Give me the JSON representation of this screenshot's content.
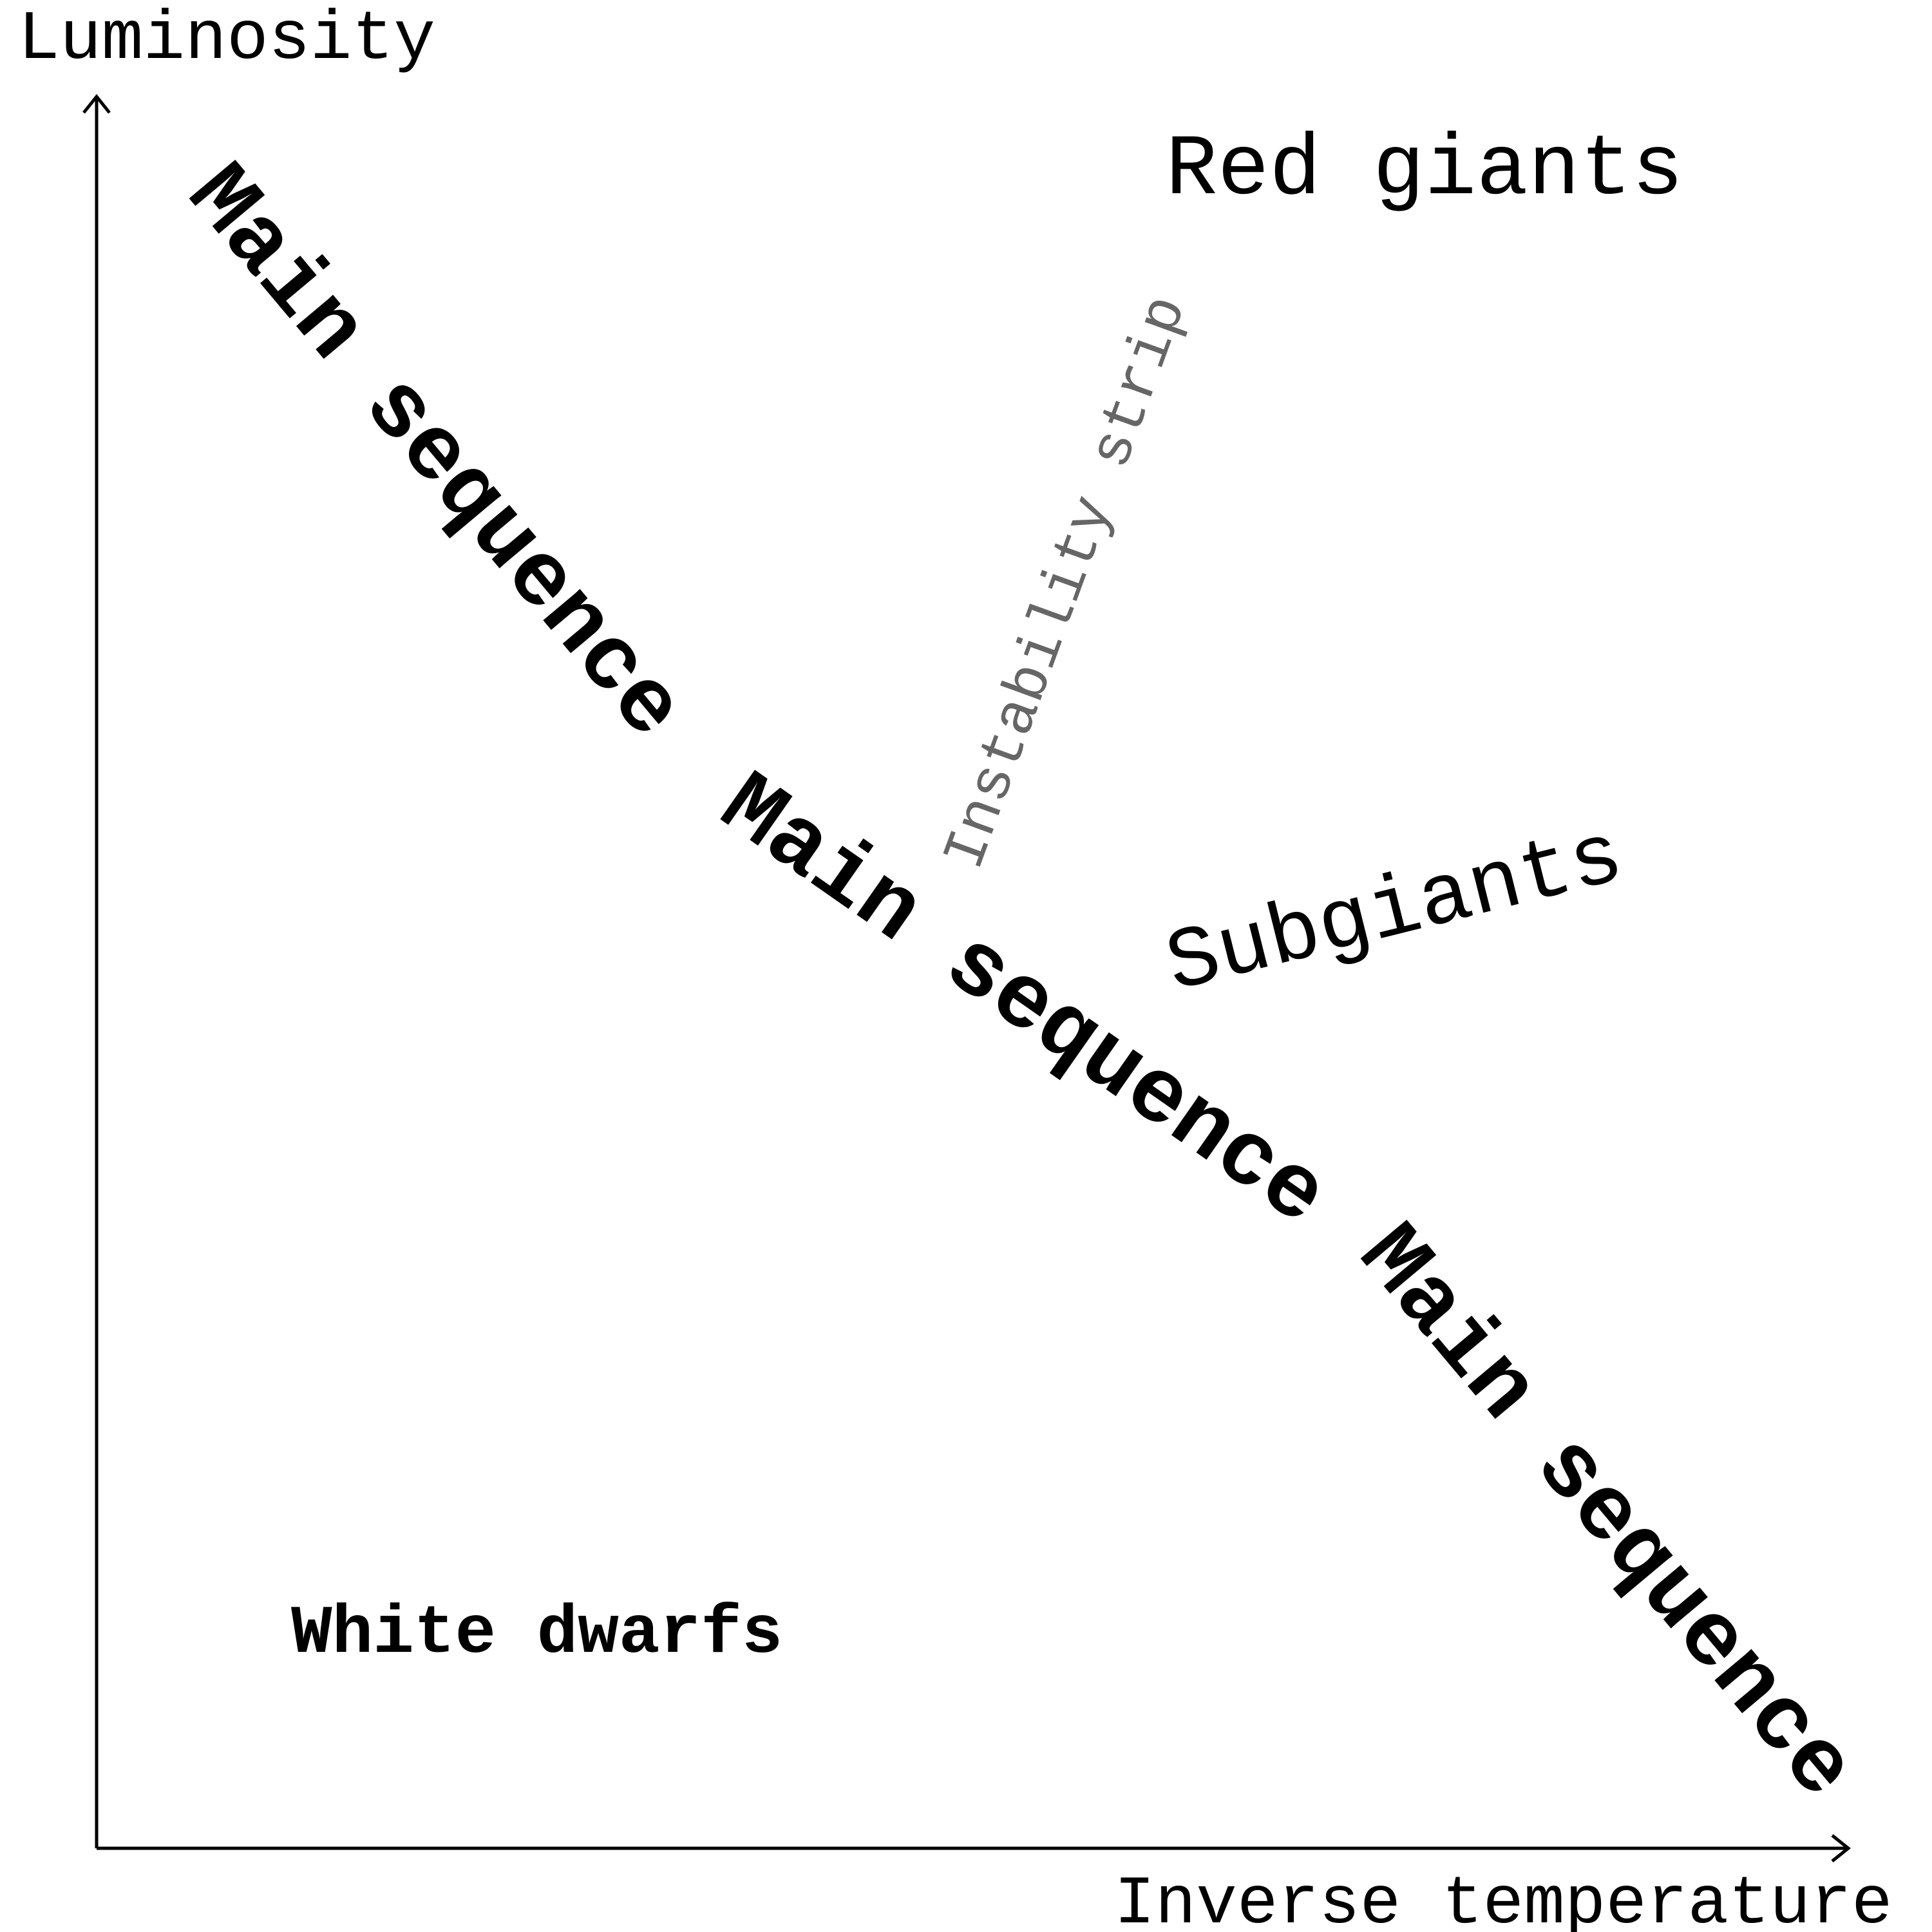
{
  "axes": {
    "y_label": "Luminosity",
    "x_label": "Inverse temperature"
  },
  "regions": [
    {
      "label": "Main sequence"
    },
    {
      "label": "Main sequence"
    },
    {
      "label": "Main sequence"
    },
    {
      "label": "Red giants"
    },
    {
      "label": "Subgiants"
    },
    {
      "label": "Instability strip"
    },
    {
      "label": "White dwarfs"
    }
  ]
}
